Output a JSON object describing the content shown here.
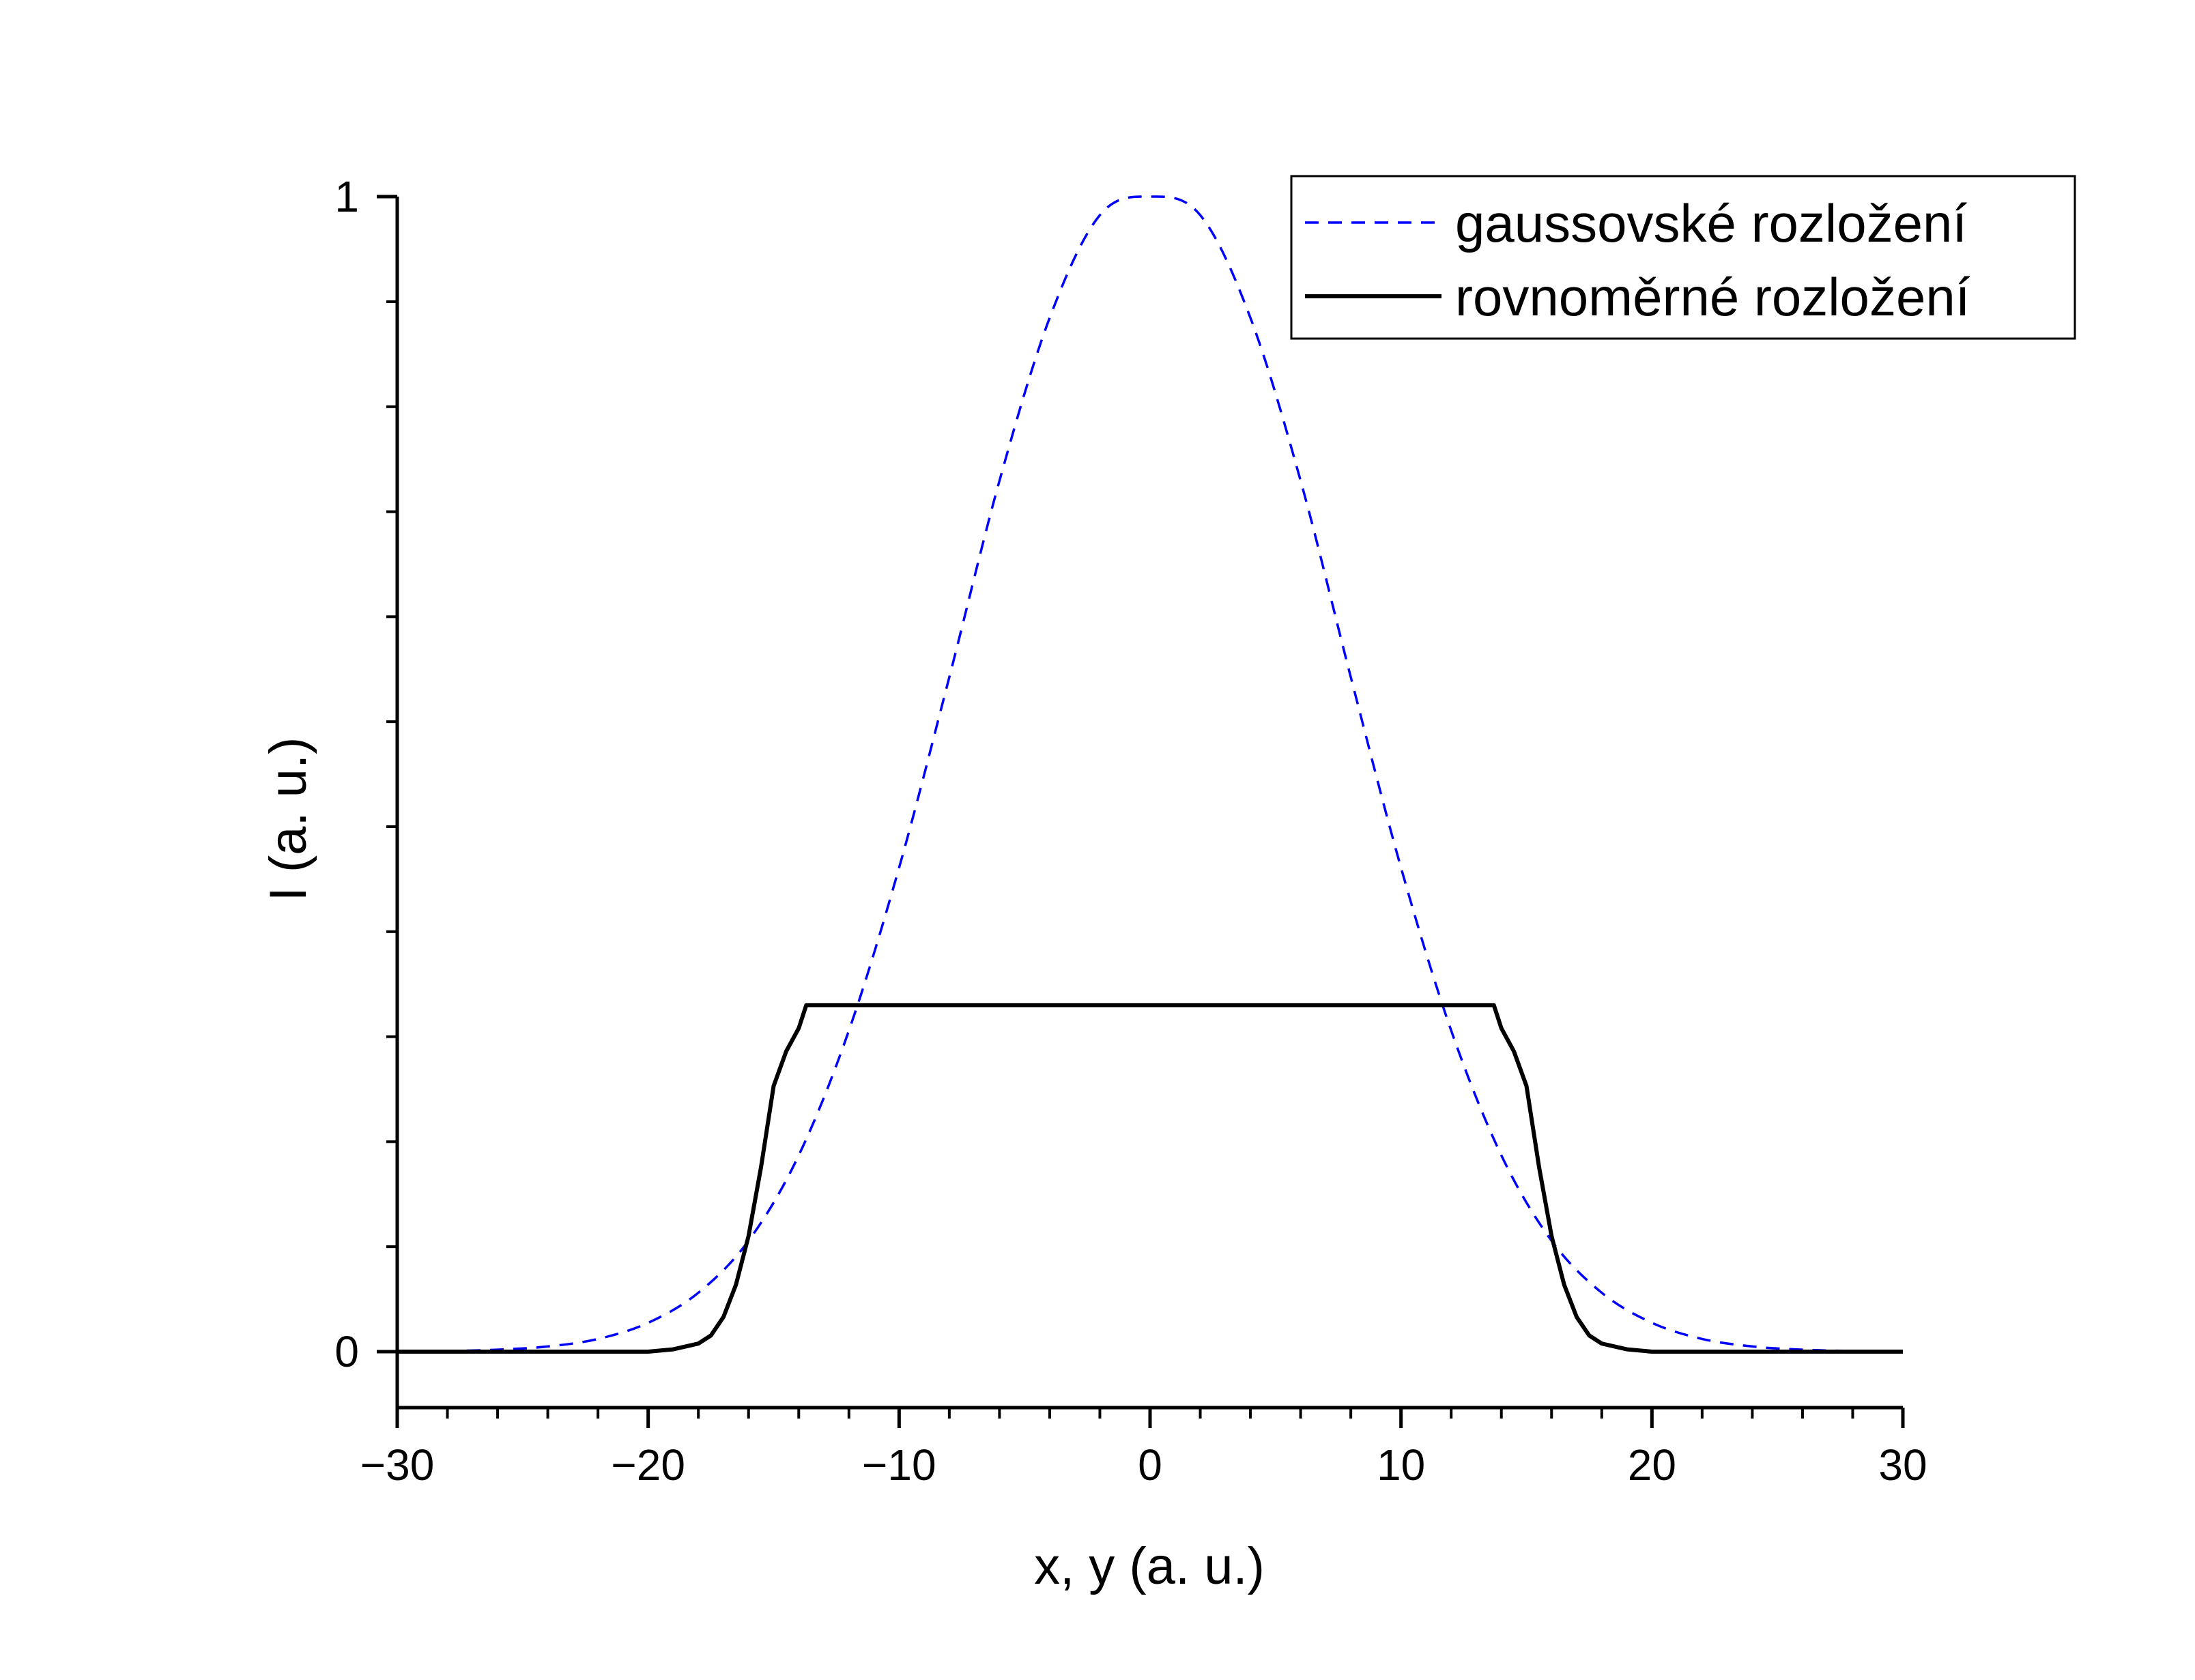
{
  "chart_data": {
    "type": "line",
    "xlabel": "x, y (a. u.)",
    "ylabel": "I (a. u.)",
    "xlim": [
      -30,
      30
    ],
    "ylim": [
      -0.05,
      1
    ],
    "x_ticks": [
      -30,
      -20,
      -10,
      0,
      10,
      20,
      30
    ],
    "x_tick_labels": [
      "−30",
      "−20",
      "−10",
      "0",
      "10",
      "20",
      "30"
    ],
    "x_minor_step": 2,
    "y_ticks": [
      0,
      1
    ],
    "y_tick_labels": [
      "0",
      "1"
    ],
    "y_minor_step": 0.0909,
    "grid": false,
    "legend_position": "top-right",
    "series": [
      {
        "name": "gaussovské rozložení",
        "color": "#0000ff",
        "style": "dashed",
        "x": [
          -30,
          -28,
          -26,
          -24,
          -22,
          -20,
          -18,
          -16,
          -14,
          -12,
          -10,
          -8,
          -6,
          -4,
          -2,
          0,
          2,
          4,
          6,
          8,
          10,
          12,
          14,
          16,
          18,
          20,
          22,
          24,
          26,
          28,
          30
        ],
        "y": [
          0.0002,
          0.0006,
          0.0017,
          0.0045,
          0.011,
          0.025,
          0.051,
          0.096,
          0.17,
          0.278,
          0.419,
          0.584,
          0.754,
          0.895,
          0.984,
          1.0,
          0.984,
          0.895,
          0.754,
          0.584,
          0.419,
          0.278,
          0.17,
          0.096,
          0.051,
          0.025,
          0.011,
          0.0045,
          0.0017,
          0.0006,
          0.0002
        ]
      },
      {
        "name": "rovnoměrné rozložení",
        "color": "#000000",
        "style": "solid",
        "x": [
          -30,
          -20,
          -19,
          -18,
          -17.5,
          -17,
          -16.5,
          -16,
          -15.5,
          -15,
          -14.5,
          -14,
          -13.7,
          13.7,
          14,
          14.5,
          15,
          15.5,
          16,
          16.5,
          17,
          17.5,
          18,
          19,
          20,
          30
        ],
        "y": [
          0,
          0,
          0.002,
          0.007,
          0.014,
          0.03,
          0.058,
          0.1,
          0.16,
          0.23,
          0.26,
          0.28,
          0.3,
          0.3,
          0.28,
          0.26,
          0.23,
          0.16,
          0.1,
          0.058,
          0.03,
          0.014,
          0.007,
          0.002,
          0,
          0
        ]
      }
    ]
  }
}
